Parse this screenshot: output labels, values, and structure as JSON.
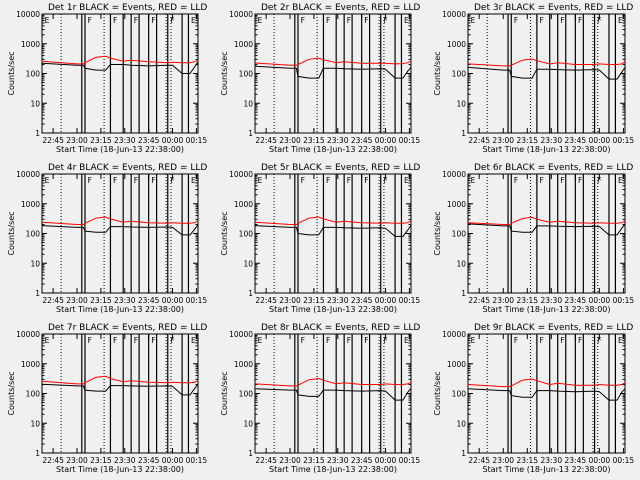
{
  "chart_data": {
    "type": "line",
    "y_scale": "log",
    "ylim": [
      1,
      10000
    ],
    "ytick_labels": [
      "1",
      "10",
      "100",
      "1000",
      "10000"
    ],
    "xlim": [
      "22:38",
      "00:16"
    ],
    "xtick_labels": [
      "22:45",
      "23:00",
      "23:15",
      "23:30",
      "23:45",
      "00:00",
      "00:15"
    ],
    "xlabel": "Start Time (18-Jun-13 22:38:00)",
    "ylabel": "Counts/sec",
    "dotted_lines": [
      "22:50",
      "23:17",
      "23:56",
      "23:59"
    ],
    "solid_lines": [
      "23:03",
      "23:05",
      "23:21",
      "23:29",
      "23:34",
      "23:39",
      "23:45",
      "23:50",
      "23:57",
      "00:06",
      "00:10"
    ],
    "top_labels": [
      {
        "x": "22:39",
        "text": "E"
      },
      {
        "x": "23:06",
        "text": "F"
      },
      {
        "x": "23:22",
        "text": "F"
      },
      {
        "x": "23:35",
        "text": "F"
      },
      {
        "x": "23:46",
        "text": "F"
      },
      {
        "x": "23:58",
        "text": "F"
      },
      {
        "x": "00:11",
        "text": "E"
      }
    ],
    "series_colors": {
      "events": "#000000",
      "lld": "#ff0000"
    },
    "panels": [
      {
        "title": "Det 1r BLACK = Events, RED = LLD",
        "x": [
          "22:38",
          "23:00",
          "23:04",
          "23:05",
          "23:12",
          "23:18",
          "23:21",
          "23:29",
          "23:34",
          "23:45",
          "23:57",
          "00:00",
          "00:06",
          "00:11",
          "00:14",
          "00:16"
        ],
        "events": [
          220,
          190,
          190,
          150,
          130,
          130,
          200,
          200,
          190,
          180,
          190,
          190,
          100,
          100,
          170,
          250
        ],
        "lld": [
          260,
          210,
          210,
          230,
          350,
          380,
          330,
          260,
          280,
          250,
          230,
          240,
          230,
          230,
          250,
          280
        ]
      },
      {
        "title": "Det 2r BLACK = Events, RED = LLD",
        "x": [
          "22:38",
          "23:00",
          "23:04",
          "23:05",
          "23:12",
          "23:18",
          "23:21",
          "23:29",
          "23:34",
          "23:45",
          "23:57",
          "00:00",
          "00:06",
          "00:11",
          "00:14",
          "00:16"
        ],
        "events": [
          175,
          150,
          150,
          80,
          70,
          70,
          150,
          150,
          145,
          140,
          145,
          140,
          70,
          70,
          120,
          160
        ],
        "lld": [
          225,
          190,
          190,
          200,
          300,
          330,
          290,
          230,
          250,
          220,
          220,
          220,
          210,
          215,
          230,
          260
        ]
      },
      {
        "title": "Det 3r BLACK = Events, RED = LLD",
        "x": [
          "22:38",
          "23:00",
          "23:04",
          "23:05",
          "23:12",
          "23:18",
          "23:21",
          "23:29",
          "23:34",
          "23:45",
          "23:57",
          "00:00",
          "00:06",
          "00:11",
          "00:14",
          "00:16"
        ],
        "events": [
          160,
          130,
          130,
          80,
          70,
          70,
          140,
          140,
          135,
          130,
          135,
          130,
          65,
          65,
          110,
          160
        ],
        "lld": [
          210,
          180,
          180,
          190,
          280,
          310,
          270,
          210,
          230,
          200,
          200,
          210,
          200,
          200,
          210,
          250
        ]
      },
      {
        "title": "Det 4r BLACK = Events, RED = LLD",
        "x": [
          "22:38",
          "23:00",
          "23:04",
          "23:05",
          "23:12",
          "23:18",
          "23:21",
          "23:29",
          "23:34",
          "23:45",
          "23:57",
          "00:00",
          "00:06",
          "00:11",
          "00:14",
          "00:16"
        ],
        "events": [
          185,
          160,
          160,
          120,
          110,
          110,
          170,
          170,
          165,
          160,
          165,
          160,
          90,
          90,
          140,
          200
        ],
        "lld": [
          240,
          200,
          200,
          220,
          330,
          360,
          310,
          240,
          260,
          230,
          220,
          230,
          220,
          220,
          230,
          270
        ]
      },
      {
        "title": "Det 5r BLACK = Events, RED = LLD",
        "x": [
          "22:38",
          "23:00",
          "23:04",
          "23:05",
          "23:12",
          "23:18",
          "23:21",
          "23:29",
          "23:34",
          "23:45",
          "23:57",
          "00:00",
          "00:06",
          "00:11",
          "00:14",
          "00:16"
        ],
        "events": [
          185,
          160,
          160,
          100,
          90,
          90,
          160,
          160,
          155,
          150,
          155,
          150,
          80,
          80,
          130,
          190
        ],
        "lld": [
          240,
          200,
          200,
          220,
          330,
          360,
          310,
          240,
          260,
          230,
          220,
          230,
          220,
          220,
          230,
          270
        ]
      },
      {
        "title": "Det 6r BLACK = Events, RED = LLD",
        "x": [
          "22:38",
          "23:00",
          "23:04",
          "23:05",
          "23:12",
          "23:18",
          "23:21",
          "23:29",
          "23:34",
          "23:45",
          "23:57",
          "00:00",
          "00:06",
          "00:11",
          "00:14",
          "00:16"
        ],
        "events": [
          210,
          180,
          180,
          120,
          110,
          110,
          180,
          180,
          175,
          170,
          175,
          170,
          90,
          90,
          150,
          210
        ],
        "lld": [
          230,
          200,
          200,
          220,
          320,
          350,
          300,
          240,
          260,
          230,
          220,
          230,
          220,
          220,
          230,
          260
        ]
      },
      {
        "title": "Det 7r BLACK = Events, RED = LLD",
        "x": [
          "22:38",
          "23:00",
          "23:04",
          "23:05",
          "23:12",
          "23:18",
          "23:21",
          "23:29",
          "23:34",
          "23:45",
          "23:57",
          "00:00",
          "00:06",
          "00:11",
          "00:14",
          "00:16"
        ],
        "events": [
          205,
          180,
          180,
          130,
          120,
          120,
          185,
          185,
          180,
          175,
          180,
          175,
          90,
          90,
          150,
          210
        ],
        "lld": [
          260,
          210,
          210,
          230,
          350,
          380,
          320,
          250,
          270,
          240,
          230,
          240,
          230,
          230,
          240,
          270
        ]
      },
      {
        "title": "Det 8r BLACK = Events, RED = LLD",
        "x": [
          "22:38",
          "23:00",
          "23:04",
          "23:05",
          "23:12",
          "23:18",
          "23:21",
          "23:29",
          "23:34",
          "23:45",
          "23:57",
          "00:00",
          "00:06",
          "00:11",
          "00:14",
          "00:16"
        ],
        "events": [
          145,
          130,
          130,
          90,
          80,
          80,
          130,
          130,
          125,
          120,
          125,
          120,
          60,
          60,
          110,
          150
        ],
        "lld": [
          210,
          180,
          180,
          190,
          290,
          320,
          280,
          210,
          230,
          200,
          200,
          210,
          200,
          200,
          210,
          240
        ]
      },
      {
        "title": "Det 9r BLACK = Events, RED = LLD",
        "x": [
          "22:38",
          "23:00",
          "23:04",
          "23:05",
          "23:12",
          "23:18",
          "23:21",
          "23:29",
          "23:34",
          "23:45",
          "23:57",
          "00:00",
          "00:06",
          "00:11",
          "00:14",
          "00:16"
        ],
        "events": [
          145,
          125,
          125,
          85,
          75,
          75,
          125,
          125,
          120,
          115,
          120,
          115,
          60,
          60,
          110,
          145
        ],
        "lld": [
          200,
          170,
          170,
          180,
          280,
          310,
          270,
          200,
          220,
          190,
          190,
          200,
          190,
          190,
          200,
          230
        ]
      }
    ]
  }
}
